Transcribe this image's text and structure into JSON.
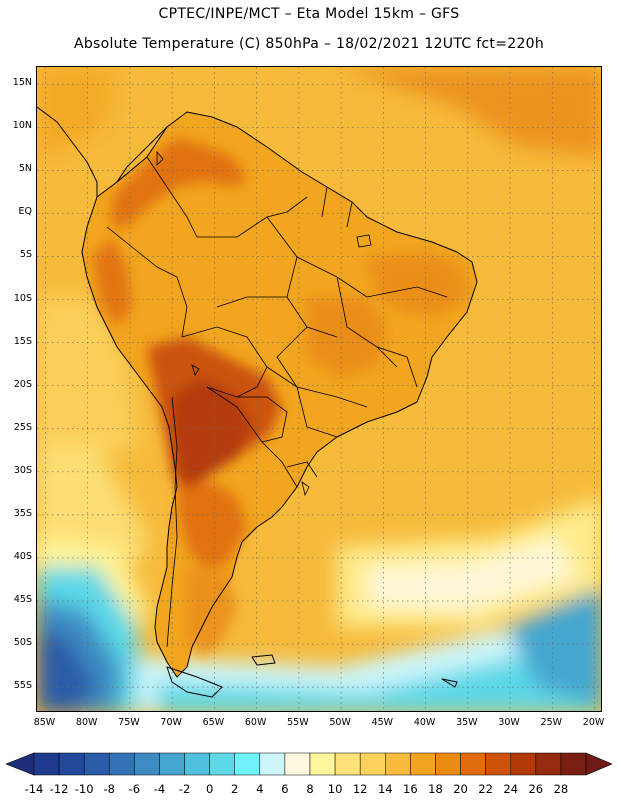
{
  "header": {
    "line1": "CPTEC/INPE/MCT –  Eta Model 15km – GFS",
    "line2": "Absolute Temperature (C) 850hPa – 18/02/2021 12UTC fct=220h"
  },
  "map": {
    "lat_labels": [
      "15N",
      "10N",
      "5N",
      "EQ",
      "5S",
      "10S",
      "15S",
      "20S",
      "25S",
      "30S",
      "35S",
      "40S",
      "45S",
      "50S",
      "55S"
    ],
    "lat_values": [
      15,
      10,
      5,
      0,
      -5,
      -10,
      -15,
      -20,
      -25,
      -30,
      -35,
      -40,
      -45,
      -50,
      -55
    ],
    "lon_labels": [
      "85W",
      "80W",
      "75W",
      "70W",
      "65W",
      "60W",
      "55W",
      "50W",
      "45W",
      "40W",
      "35W",
      "30W",
      "25W",
      "20W"
    ],
    "lon_values": [
      -85,
      -80,
      -75,
      -70,
      -65,
      -60,
      -55,
      -50,
      -45,
      -40,
      -35,
      -30,
      -25,
      -20
    ],
    "lat_range": [
      -58,
      17
    ],
    "lon_range": [
      -86,
      -19
    ]
  },
  "colorbar": {
    "labels": [
      "-14",
      "-12",
      "-10",
      "-8",
      "-6",
      "-4",
      "-2",
      "0",
      "2",
      "4",
      "6",
      "8",
      "10",
      "12",
      "14",
      "16",
      "18",
      "20",
      "22",
      "24",
      "26",
      "28"
    ],
    "colors": [
      "#1f3a8f",
      "#22489c",
      "#2a5ca8",
      "#3372b4",
      "#3c8cc3",
      "#45a6d0",
      "#4ec0dc",
      "#5cd8e8",
      "#6ff2f7",
      "#cdf6fb",
      "#fff8e0",
      "#fff59a",
      "#fde27a",
      "#fbd15c",
      "#f7bb3c",
      "#f2a51f",
      "#ea8c14",
      "#e06d0b",
      "#cc5308",
      "#b33a08",
      "#952a0e",
      "#7a1f12"
    ],
    "low_arrow_color": "#1f2d7a",
    "high_arrow_color": "#6e1a16"
  },
  "palette": {
    "land_base": "#f2a51f",
    "ocean_base": "#f7bb3c",
    "hot_zone": "#cc5308",
    "very_hot": "#b33a08",
    "cold_ocean": "#45a6d0",
    "very_cold": "#2a5ca8",
    "border": "#000000"
  }
}
